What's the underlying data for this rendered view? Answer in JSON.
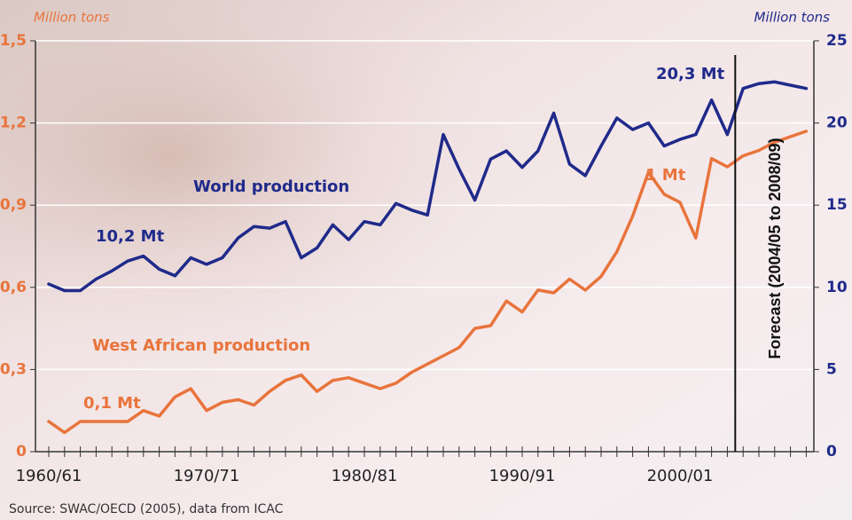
{
  "chart_data": {
    "type": "line",
    "y_axis_label": "Million tons",
    "y2_axis_label": "Million tons",
    "categories": [
      "1960/61",
      null,
      null,
      null,
      null,
      null,
      null,
      null,
      null,
      null,
      "1970/71",
      null,
      null,
      null,
      null,
      null,
      null,
      null,
      null,
      null,
      "1980/81",
      null,
      null,
      null,
      null,
      null,
      null,
      null,
      null,
      null,
      "1990/91",
      null,
      null,
      null,
      null,
      null,
      null,
      null,
      null,
      null,
      "2000/01",
      null,
      null,
      null,
      null,
      null,
      null,
      null,
      null
    ],
    "ylim": [
      0,
      1.5
    ],
    "yticks": [
      0,
      {
        "value": 0.3,
        "label": "0,3"
      },
      {
        "value": 0.6,
        "label": "0,6"
      },
      {
        "value": 0.9,
        "label": "0,9"
      },
      {
        "value": 1.2,
        "label": "1,2"
      },
      {
        "value": 1.5,
        "label": "1,5"
      }
    ],
    "y2lim": [
      0,
      25
    ],
    "y2ticks": [
      0,
      5,
      10,
      15,
      20,
      25
    ],
    "grid": true,
    "series": [
      {
        "name": "World production",
        "color": "#1f2a8a",
        "axis": "y2",
        "values": [
          10.2,
          9.8,
          9.8,
          10.5,
          11.0,
          11.6,
          11.9,
          11.1,
          10.7,
          11.8,
          11.4,
          11.8,
          13.0,
          13.7,
          13.6,
          14.0,
          11.8,
          12.4,
          13.8,
          12.9,
          14.0,
          13.8,
          15.1,
          14.7,
          14.4,
          19.3,
          17.2,
          15.3,
          17.8,
          18.3,
          17.3,
          18.3,
          20.6,
          17.5,
          16.8,
          18.6,
          20.3,
          19.6,
          20.0,
          18.6,
          19.0,
          19.3,
          21.4,
          19.3,
          22.1,
          22.4,
          22.5,
          22.3,
          22.1
        ]
      },
      {
        "name": "West African production",
        "color": "#e8743c",
        "values": [
          0.11,
          0.07,
          0.11,
          0.11,
          0.11,
          0.11,
          0.15,
          0.13,
          0.2,
          0.23,
          0.15,
          0.18,
          0.19,
          0.17,
          0.22,
          0.26,
          0.28,
          0.22,
          0.26,
          0.27,
          0.25,
          0.23,
          0.25,
          0.29,
          0.32,
          0.35,
          0.38,
          0.45,
          0.46,
          0.55,
          0.51,
          0.59,
          0.58,
          0.63,
          0.59,
          0.64,
          0.73,
          0.86,
          1.02,
          0.94,
          0.91,
          0.78,
          1.07,
          1.04,
          1.08,
          1.1,
          1.13,
          1.15,
          1.17
        ]
      }
    ],
    "annotations": [
      "10,2 Mt",
      "20,3 Mt",
      "0,1 Mt",
      "1 Mt",
      "Forecast (2004/05 to 2008/09)"
    ],
    "source": "Source: SWAC/OECD (2005), data from ICAC"
  }
}
